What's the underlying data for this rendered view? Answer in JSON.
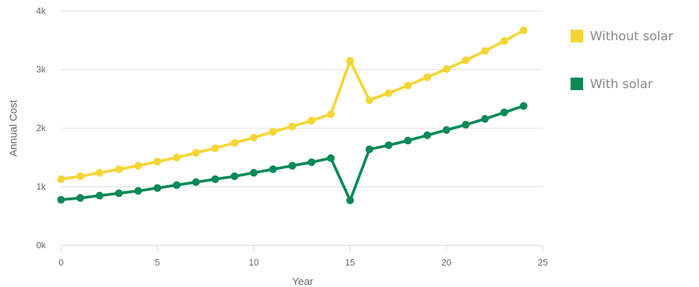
{
  "chart_data": {
    "type": "line",
    "title": "",
    "xlabel": "Year",
    "ylabel": "Annual Cost",
    "xlim": [
      0,
      25
    ],
    "ylim": [
      0,
      4000
    ],
    "x_ticks": [
      0,
      5,
      10,
      15,
      20,
      25
    ],
    "x_tick_labels": [
      "0",
      "5",
      "10",
      "15",
      "20",
      "25"
    ],
    "y_ticks": [
      0,
      1000,
      2000,
      3000,
      4000
    ],
    "y_tick_labels": [
      "0k",
      "1k",
      "2k",
      "3k",
      "4k"
    ],
    "grid": "horizontal",
    "legend": "right",
    "x": [
      0,
      1,
      2,
      3,
      4,
      5,
      6,
      7,
      8,
      9,
      10,
      11,
      12,
      13,
      14,
      15,
      16,
      17,
      18,
      19,
      20,
      21,
      22,
      23,
      24
    ],
    "series": [
      {
        "name": "Without solar",
        "color": "#f5d535",
        "values": [
          1130,
          1180,
          1240,
          1300,
          1360,
          1430,
          1500,
          1580,
          1660,
          1750,
          1840,
          1940,
          2030,
          2130,
          2240,
          3150,
          2480,
          2600,
          2730,
          2870,
          3010,
          3160,
          3320,
          3490,
          3670
        ]
      },
      {
        "name": "With solar",
        "color": "#0a8a57",
        "values": [
          780,
          810,
          850,
          890,
          930,
          980,
          1030,
          1080,
          1130,
          1180,
          1240,
          1300,
          1360,
          1420,
          1490,
          770,
          1640,
          1710,
          1790,
          1880,
          1970,
          2060,
          2160,
          2270,
          2380
        ]
      }
    ]
  }
}
